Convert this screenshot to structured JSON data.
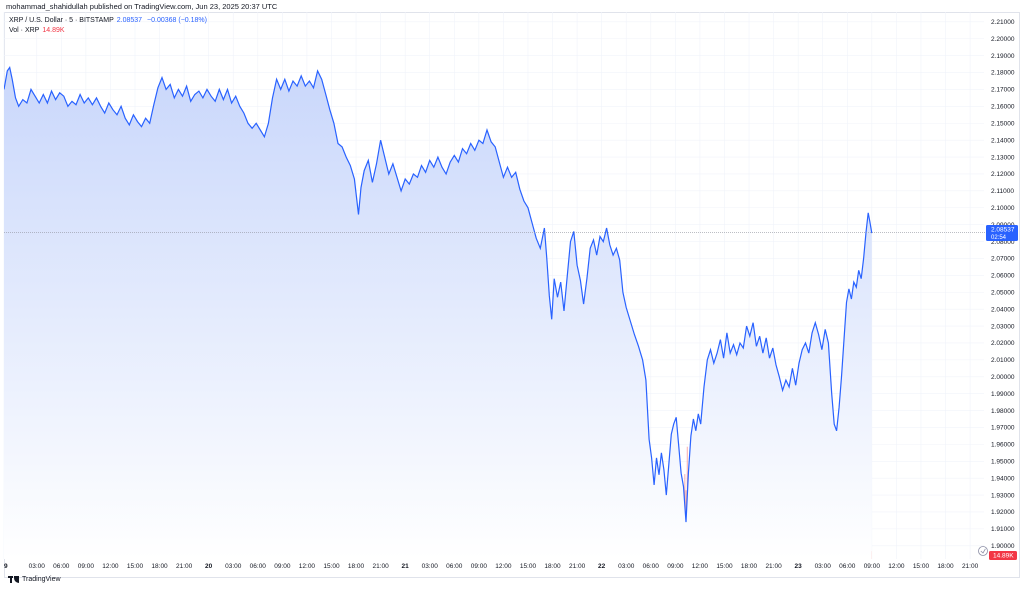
{
  "header": {
    "publisher_text": "mohammad_shahidullah published on TradingView.com, Jun 23, 2025 20:37 UTC"
  },
  "legend": {
    "symbol": "XRP / U.S. Dollar · 5 · BITSTAMP",
    "price": "2.08537",
    "change": "−0.00368 (−0.18%)",
    "vol_label": "Vol · XRP",
    "vol_value": "14.89K"
  },
  "footer": {
    "brand": "TradingView"
  },
  "colors": {
    "line": "#2962ff",
    "area_top": "#c9d7fb",
    "area_bottom": "#ffffff",
    "vol_up": "#7ed3b5",
    "vol_down": "#f7a4a4",
    "last_price_bg": "#2962ff",
    "vol_badge_bg": "#f23645",
    "grid": "#f0f3fa"
  },
  "chart_data": {
    "type": "area",
    "title": "",
    "xlabel": "",
    "ylabel": "",
    "ylim": [
      1.89,
      2.215
    ],
    "y_ticks": [
      "2.21000",
      "2.20000",
      "2.19000",
      "2.18000",
      "2.17000",
      "2.16000",
      "2.15000",
      "2.14000",
      "2.13000",
      "2.12000",
      "2.11000",
      "2.10000",
      "2.09000",
      "2.08000",
      "2.07000",
      "2.06000",
      "2.05000",
      "2.04000",
      "2.03000",
      "2.02000",
      "2.01000",
      "2.00000",
      "1.99000",
      "1.98000",
      "1.97000",
      "1.96000",
      "1.95000",
      "1.94000",
      "1.93000",
      "1.92000",
      "1.91000",
      "1.90000"
    ],
    "x_range_hours": [
      -1,
      70.3
    ],
    "x_ticks": [
      {
        "h": -1,
        "label": "9"
      },
      {
        "h": 3,
        "label": "03:00"
      },
      {
        "h": 6,
        "label": "06:00"
      },
      {
        "h": 9,
        "label": "09:00"
      },
      {
        "h": 12,
        "label": "12:00"
      },
      {
        "h": 15,
        "label": "15:00"
      },
      {
        "h": 18,
        "label": "18:00"
      },
      {
        "h": 21,
        "label": "21:00"
      },
      {
        "h": 24,
        "label": "20"
      },
      {
        "h": 27,
        "label": "03:00"
      },
      {
        "h": 30,
        "label": "06:00"
      },
      {
        "h": 33,
        "label": "09:00"
      },
      {
        "h": 36,
        "label": "12:00"
      },
      {
        "h": 39,
        "label": "15:00"
      },
      {
        "h": 42,
        "label": "18:00"
      },
      {
        "h": 45,
        "label": "21:00"
      },
      {
        "h": 48,
        "label": "21"
      },
      {
        "h": 51,
        "label": "03:00"
      },
      {
        "h": 54,
        "label": "06:00"
      },
      {
        "h": 57,
        "label": "09:00"
      },
      {
        "h": 60,
        "label": "12:00"
      },
      {
        "h": 63,
        "label": "15:00"
      },
      {
        "h": 66,
        "label": "18:00"
      },
      {
        "h": 69,
        "label": "21:00"
      },
      {
        "h": 72,
        "label": "22"
      },
      {
        "h": 75,
        "label": "03:00"
      },
      {
        "h": 78,
        "label": "06:00"
      },
      {
        "h": 81,
        "label": "09:00"
      },
      {
        "h": 84,
        "label": "12:00"
      },
      {
        "h": 87,
        "label": "15:00"
      },
      {
        "h": 90,
        "label": "18:00"
      },
      {
        "h": 93,
        "label": "21:00"
      },
      {
        "h": 96,
        "label": "23"
      },
      {
        "h": 99,
        "label": "03:00"
      },
      {
        "h": 102,
        "label": "06:00"
      },
      {
        "h": 105,
        "label": "09:00"
      },
      {
        "h": 108,
        "label": "12:00"
      },
      {
        "h": 111,
        "label": "15:00"
      },
      {
        "h": 114,
        "label": "18:00"
      },
      {
        "h": 117,
        "label": "21:00"
      }
    ],
    "price_series": {
      "name": "XRP / U.S. Dollar",
      "points": [
        [
          -1.0,
          2.17
        ],
        [
          -0.6,
          2.181
        ],
        [
          -0.3,
          2.183
        ],
        [
          0.0,
          2.176
        ],
        [
          0.4,
          2.165
        ],
        [
          0.8,
          2.16
        ],
        [
          1.3,
          2.164
        ],
        [
          1.8,
          2.162
        ],
        [
          2.3,
          2.17
        ],
        [
          2.8,
          2.166
        ],
        [
          3.3,
          2.162
        ],
        [
          3.8,
          2.167
        ],
        [
          4.3,
          2.162
        ],
        [
          4.8,
          2.169
        ],
        [
          5.3,
          2.164
        ],
        [
          5.8,
          2.168
        ],
        [
          6.3,
          2.166
        ],
        [
          6.8,
          2.16
        ],
        [
          7.3,
          2.163
        ],
        [
          7.8,
          2.161
        ],
        [
          8.3,
          2.167
        ],
        [
          8.8,
          2.162
        ],
        [
          9.3,
          2.165
        ],
        [
          9.8,
          2.161
        ],
        [
          10.3,
          2.165
        ],
        [
          10.8,
          2.16
        ],
        [
          11.3,
          2.156
        ],
        [
          11.8,
          2.162
        ],
        [
          12.3,
          2.158
        ],
        [
          12.8,
          2.155
        ],
        [
          13.3,
          2.16
        ],
        [
          13.8,
          2.153
        ],
        [
          14.3,
          2.149
        ],
        [
          14.8,
          2.155
        ],
        [
          15.3,
          2.151
        ],
        [
          15.8,
          2.148
        ],
        [
          16.3,
          2.153
        ],
        [
          16.8,
          2.15
        ],
        [
          17.3,
          2.161
        ],
        [
          17.8,
          2.171
        ],
        [
          18.3,
          2.177
        ],
        [
          18.8,
          2.17
        ],
        [
          19.3,
          2.173
        ],
        [
          19.8,
          2.165
        ],
        [
          20.3,
          2.17
        ],
        [
          20.8,
          2.166
        ],
        [
          21.3,
          2.172
        ],
        [
          21.8,
          2.163
        ],
        [
          22.3,
          2.167
        ],
        [
          22.8,
          2.169
        ],
        [
          23.3,
          2.165
        ],
        [
          23.8,
          2.17
        ],
        [
          24.3,
          2.166
        ],
        [
          24.8,
          2.163
        ],
        [
          25.3,
          2.17
        ],
        [
          25.8,
          2.164
        ],
        [
          26.3,
          2.17
        ],
        [
          26.8,
          2.162
        ],
        [
          27.3,
          2.166
        ],
        [
          27.8,
          2.16
        ],
        [
          28.3,
          2.156
        ],
        [
          28.8,
          2.15
        ],
        [
          29.3,
          2.147
        ],
        [
          29.8,
          2.15
        ],
        [
          30.3,
          2.146
        ],
        [
          30.8,
          2.142
        ],
        [
          31.3,
          2.15
        ],
        [
          31.8,
          2.165
        ],
        [
          32.3,
          2.176
        ],
        [
          32.8,
          2.17
        ],
        [
          33.3,
          2.176
        ],
        [
          33.8,
          2.169
        ],
        [
          34.3,
          2.175
        ],
        [
          34.8,
          2.172
        ],
        [
          35.3,
          2.178
        ],
        [
          35.8,
          2.172
        ],
        [
          36.3,
          2.175
        ],
        [
          36.8,
          2.171
        ],
        [
          37.3,
          2.181
        ],
        [
          37.8,
          2.176
        ],
        [
          38.3,
          2.167
        ],
        [
          38.8,
          2.158
        ],
        [
          39.3,
          2.15
        ],
        [
          39.8,
          2.138
        ],
        [
          40.3,
          2.136
        ],
        [
          40.8,
          2.13
        ],
        [
          41.3,
          2.125
        ],
        [
          41.8,
          2.117
        ],
        [
          42.3,
          2.096
        ],
        [
          42.6,
          2.112
        ],
        [
          43.0,
          2.122
        ],
        [
          43.5,
          2.128
        ],
        [
          44.0,
          2.115
        ],
        [
          44.5,
          2.126
        ],
        [
          45.0,
          2.14
        ],
        [
          45.5,
          2.13
        ],
        [
          46.0,
          2.12
        ],
        [
          46.5,
          2.126
        ],
        [
          47.0,
          2.118
        ],
        [
          47.5,
          2.11
        ],
        [
          48.0,
          2.117
        ],
        [
          48.5,
          2.114
        ],
        [
          49.0,
          2.12
        ],
        [
          49.5,
          2.118
        ],
        [
          50.0,
          2.125
        ],
        [
          50.5,
          2.121
        ],
        [
          51.0,
          2.128
        ],
        [
          51.5,
          2.124
        ],
        [
          52.0,
          2.13
        ],
        [
          52.5,
          2.124
        ],
        [
          53.0,
          2.12
        ],
        [
          53.5,
          2.127
        ],
        [
          54.0,
          2.131
        ],
        [
          54.5,
          2.127
        ],
        [
          55.0,
          2.135
        ],
        [
          55.5,
          2.132
        ],
        [
          56.0,
          2.138
        ],
        [
          56.5,
          2.134
        ],
        [
          57.0,
          2.14
        ],
        [
          57.5,
          2.138
        ],
        [
          58.0,
          2.146
        ],
        [
          58.5,
          2.139
        ],
        [
          59.0,
          2.136
        ],
        [
          59.5,
          2.127
        ],
        [
          60.0,
          2.118
        ],
        [
          60.5,
          2.124
        ],
        [
          61.0,
          2.118
        ],
        [
          61.5,
          2.121
        ],
        [
          62.0,
          2.111
        ],
        [
          62.5,
          2.104
        ],
        [
          63.0,
          2.1
        ],
        [
          63.5,
          2.091
        ],
        [
          64.0,
          2.082
        ],
        [
          64.5,
          2.076
        ],
        [
          65.0,
          2.088
        ],
        [
          65.3,
          2.07
        ],
        [
          65.6,
          2.048
        ],
        [
          65.9,
          2.034
        ],
        [
          66.2,
          2.058
        ],
        [
          66.6,
          2.047
        ],
        [
          67.0,
          2.056
        ],
        [
          67.4,
          2.039
        ],
        [
          67.8,
          2.06
        ],
        [
          68.2,
          2.08
        ],
        [
          68.6,
          2.086
        ],
        [
          69.0,
          2.066
        ],
        [
          69.4,
          2.057
        ],
        [
          69.8,
          2.043
        ],
        [
          70.2,
          2.058
        ],
        [
          70.6,
          2.076
        ],
        [
          71.0,
          2.081
        ],
        [
          71.4,
          2.072
        ],
        [
          71.8,
          2.083
        ],
        [
          72.2,
          2.08
        ],
        [
          72.6,
          2.088
        ],
        [
          73.0,
          2.078
        ],
        [
          73.4,
          2.072
        ],
        [
          73.8,
          2.076
        ],
        [
          74.2,
          2.069
        ],
        [
          74.6,
          2.05
        ],
        [
          75.0,
          2.041
        ],
        [
          75.5,
          2.033
        ],
        [
          76.0,
          2.025
        ],
        [
          76.5,
          2.018
        ],
        [
          77.0,
          2.01
        ],
        [
          77.4,
          1.998
        ],
        [
          77.8,
          1.963
        ],
        [
          78.1,
          1.952
        ],
        [
          78.4,
          1.936
        ],
        [
          78.7,
          1.952
        ],
        [
          79.0,
          1.942
        ],
        [
          79.3,
          1.955
        ],
        [
          79.6,
          1.945
        ],
        [
          79.9,
          1.93
        ],
        [
          80.2,
          1.948
        ],
        [
          80.5,
          1.966
        ],
        [
          80.8,
          1.972
        ],
        [
          81.1,
          1.976
        ],
        [
          81.4,
          1.96
        ],
        [
          81.7,
          1.943
        ],
        [
          82.0,
          1.935
        ],
        [
          82.3,
          1.914
        ],
        [
          82.6,
          1.943
        ],
        [
          82.9,
          1.965
        ],
        [
          83.2,
          1.975
        ],
        [
          83.5,
          1.968
        ],
        [
          83.8,
          1.978
        ],
        [
          84.1,
          1.972
        ],
        [
          84.5,
          1.994
        ],
        [
          84.9,
          2.01
        ],
        [
          85.3,
          2.016
        ],
        [
          85.7,
          2.008
        ],
        [
          86.1,
          2.014
        ],
        [
          86.5,
          2.022
        ],
        [
          86.9,
          2.011
        ],
        [
          87.3,
          2.026
        ],
        [
          87.7,
          2.014
        ],
        [
          88.1,
          2.019
        ],
        [
          88.5,
          2.013
        ],
        [
          88.9,
          2.02
        ],
        [
          89.3,
          2.017
        ],
        [
          89.7,
          2.03
        ],
        [
          90.1,
          2.024
        ],
        [
          90.5,
          2.032
        ],
        [
          90.9,
          2.018
        ],
        [
          91.3,
          2.024
        ],
        [
          91.7,
          2.014
        ],
        [
          92.1,
          2.023
        ],
        [
          92.5,
          2.011
        ],
        [
          92.9,
          2.017
        ],
        [
          93.3,
          2.007
        ],
        [
          93.7,
          2.0
        ],
        [
          94.1,
          1.992
        ],
        [
          94.5,
          1.998
        ],
        [
          94.9,
          1.994
        ],
        [
          95.3,
          2.005
        ],
        [
          95.7,
          1.995
        ],
        [
          96.1,
          2.008
        ],
        [
          96.5,
          2.016
        ],
        [
          96.9,
          2.02
        ],
        [
          97.3,
          2.014
        ],
        [
          97.7,
          2.026
        ],
        [
          98.1,
          2.032
        ],
        [
          98.5,
          2.025
        ],
        [
          98.9,
          2.016
        ],
        [
          99.3,
          2.028
        ],
        [
          99.7,
          2.02
        ],
        [
          100.1,
          1.99
        ],
        [
          100.4,
          1.972
        ],
        [
          100.7,
          1.968
        ],
        [
          101.0,
          1.982
        ],
        [
          101.3,
          2.0
        ],
        [
          101.6,
          2.022
        ],
        [
          101.9,
          2.044
        ],
        [
          102.2,
          2.052
        ],
        [
          102.5,
          2.046
        ],
        [
          102.8,
          2.056
        ],
        [
          103.1,
          2.053
        ],
        [
          103.4,
          2.063
        ],
        [
          103.7,
          2.058
        ],
        [
          104.0,
          2.07
        ],
        [
          104.3,
          2.086
        ],
        [
          104.55,
          2.097
        ],
        [
          104.75,
          2.092
        ],
        [
          105.0,
          2.085
        ]
      ]
    },
    "volume_series": {
      "name": "Vol · XRP",
      "description_free_values": true,
      "max_value_k": 150
    }
  }
}
